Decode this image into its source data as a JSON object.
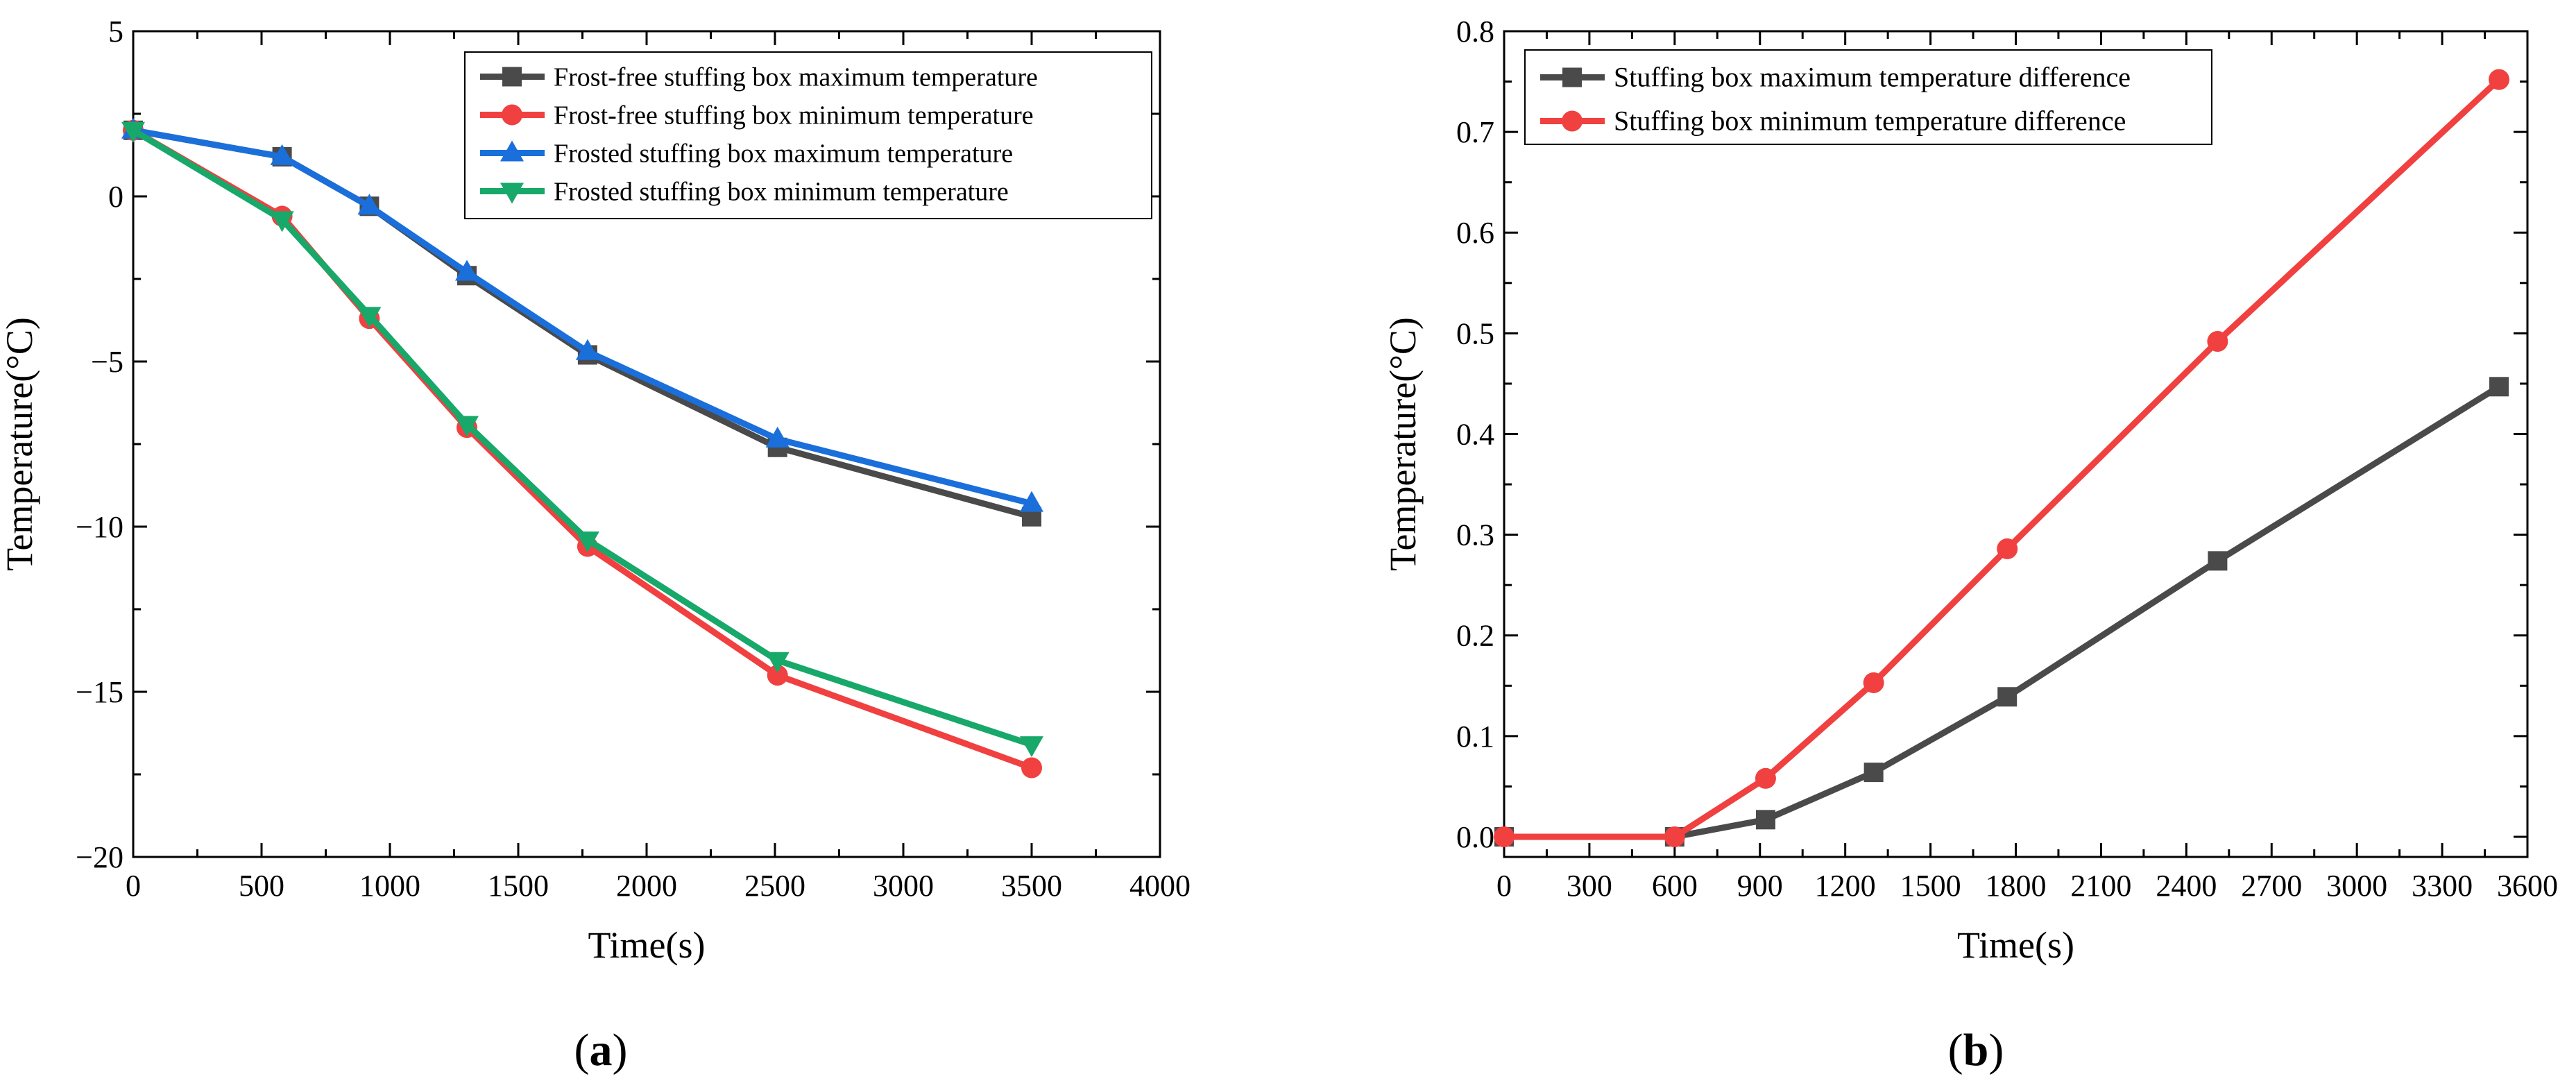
{
  "chart_data": [
    {
      "panel": "a",
      "panel_label_open": "(",
      "panel_label_letter": "a",
      "panel_label_close": ")",
      "type": "line",
      "xlabel": "Time(s)",
      "ylabel": "Temperature(°C)",
      "xlim": [
        0,
        4000
      ],
      "ylim": [
        -20,
        5
      ],
      "xticks": [
        0,
        500,
        1000,
        1500,
        2000,
        2500,
        3000,
        3500,
        4000
      ],
      "xtick_labels": [
        "0",
        "500",
        "1000",
        "1500",
        "2000",
        "2500",
        "3000",
        "3500",
        "4000"
      ],
      "yticks": [
        -20,
        -15,
        -10,
        -5,
        0,
        5
      ],
      "ytick_labels": [
        "−20",
        "−15",
        "−10",
        "−5",
        "0",
        "5"
      ],
      "legend_position": "top-right",
      "x": [
        0,
        580,
        920,
        1300,
        1770,
        2510,
        3500
      ],
      "series": [
        {
          "name": "Frost-free stuffing box maximum temperature",
          "color": "#4a4a4a",
          "marker": "square",
          "values": [
            2.0,
            1.2,
            -0.3,
            -2.4,
            -4.8,
            -7.6,
            -9.7
          ]
        },
        {
          "name": "Frost-free stuffing box minimum temperature",
          "color": "#f04040",
          "marker": "circle",
          "values": [
            2.0,
            -0.6,
            -3.7,
            -7.0,
            -10.6,
            -14.5,
            -17.3
          ]
        },
        {
          "name": "Frosted stuffing box maximum temperature",
          "color": "#1a6fdb",
          "marker": "triangle-up",
          "values": [
            2.0,
            1.2,
            -0.3,
            -2.3,
            -4.7,
            -7.35,
            -9.3
          ]
        },
        {
          "name": "Frosted stuffing box minimum temperature",
          "color": "#17a86a",
          "marker": "triangle-down",
          "values": [
            2.0,
            -0.7,
            -3.6,
            -6.9,
            -10.4,
            -14.05,
            -16.6
          ]
        }
      ]
    },
    {
      "panel": "b",
      "panel_label_open": "(",
      "panel_label_letter": "b",
      "panel_label_close": ")",
      "type": "line",
      "xlabel": "Time(s)",
      "ylabel": "Temperature(°C)",
      "xlim": [
        0,
        3600
      ],
      "ylim": [
        -0.02,
        0.8
      ],
      "xticks": [
        0,
        300,
        600,
        900,
        1200,
        1500,
        1800,
        2100,
        2400,
        2700,
        3000,
        3300,
        3600
      ],
      "xtick_labels": [
        "0",
        "300",
        "600",
        "900",
        "1200",
        "1500",
        "1800",
        "2100",
        "2400",
        "2700",
        "3000",
        "3300",
        "3600"
      ],
      "yticks": [
        0.0,
        0.1,
        0.2,
        0.3,
        0.4,
        0.5,
        0.6,
        0.7,
        0.8
      ],
      "ytick_labels": [
        "0.0",
        "0.1",
        "0.2",
        "0.3",
        "0.4",
        "0.5",
        "0.6",
        "0.7",
        "0.8"
      ],
      "legend_position": "top-left",
      "x": [
        0,
        600,
        920,
        1300,
        1770,
        2510,
        3500
      ],
      "series": [
        {
          "name": "Stuffing box maximum temperature difference",
          "color": "#4a4a4a",
          "marker": "square",
          "values": [
            0.0,
            0.0,
            0.017,
            0.064,
            0.139,
            0.274,
            0.447
          ]
        },
        {
          "name": "Stuffing box minimum temperature difference",
          "color": "#f04040",
          "marker": "circle",
          "values": [
            0.0,
            0.0,
            0.058,
            0.153,
            0.286,
            0.492,
            0.752
          ]
        }
      ]
    }
  ]
}
